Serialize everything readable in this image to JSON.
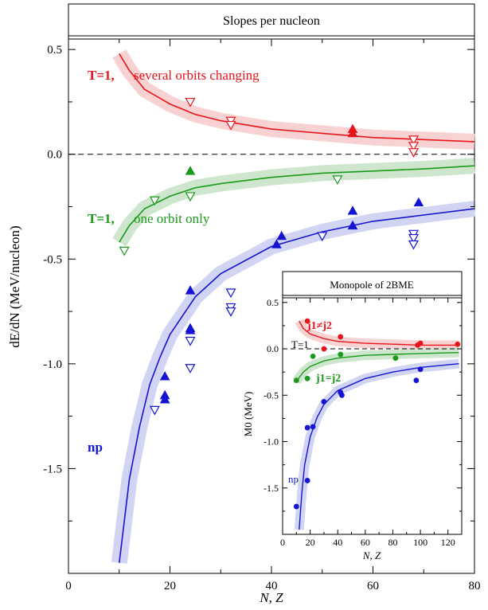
{
  "chart_data": [
    {
      "type": "scatter",
      "title": "Slopes per nucleon",
      "xlabel": "N, Z",
      "ylabel": "dE/dN  (MeV/nucleon)",
      "xlim": [
        0,
        80
      ],
      "ylim": [
        -2.0,
        0.55
      ],
      "xticks": [
        0,
        20,
        40,
        60,
        80
      ],
      "yticks": [
        0.5,
        0.0,
        -0.5,
        -1.0,
        -1.5
      ],
      "ytick_labels": [
        "0.5",
        "0.0",
        "-0.5",
        "-1.0",
        "-1.5"
      ],
      "reference_line": {
        "y": 0.0,
        "style": "dashed"
      },
      "grid": false,
      "series": [
        {
          "label": "T=1,",
          "description": "several orbits changing",
          "color": "#e8141b",
          "band_color": "#f8d2d2",
          "fit": {
            "x_start": 10,
            "x_end": 80,
            "points": [
              [
                10,
                0.48
              ],
              [
                12,
                0.4
              ],
              [
                15,
                0.31
              ],
              [
                20,
                0.24
              ],
              [
                25,
                0.19
              ],
              [
                30,
                0.16
              ],
              [
                40,
                0.12
              ],
              [
                50,
                0.1
              ],
              [
                60,
                0.08
              ],
              [
                70,
                0.07
              ],
              [
                80,
                0.06
              ]
            ]
          },
          "filled_points": [
            [
              56,
              0.12
            ],
            [
              56,
              0.1
            ]
          ],
          "open_points": [
            [
              24,
              0.25
            ],
            [
              32,
              0.16
            ],
            [
              32,
              0.14
            ],
            [
              68,
              0.07
            ],
            [
              68,
              0.04
            ],
            [
              68,
              0.01
            ]
          ]
        },
        {
          "label": "T=1,",
          "description": "one orbit only",
          "color": "#1a9a1a",
          "band_color": "#cde6cd",
          "fit": {
            "x_start": 10,
            "x_end": 80,
            "points": [
              [
                10,
                -0.42
              ],
              [
                12,
                -0.34
              ],
              [
                15,
                -0.26
              ],
              [
                20,
                -0.2
              ],
              [
                25,
                -0.16
              ],
              [
                30,
                -0.14
              ],
              [
                40,
                -0.11
              ],
              [
                50,
                -0.09
              ],
              [
                60,
                -0.08
              ],
              [
                70,
                -0.07
              ],
              [
                80,
                -0.055
              ]
            ]
          },
          "filled_points": [
            [
              24,
              -0.08
            ]
          ],
          "open_points": [
            [
              11,
              -0.46
            ],
            [
              17,
              -0.22
            ],
            [
              24,
              -0.2
            ],
            [
              53,
              -0.12
            ]
          ]
        },
        {
          "label": "np",
          "description": "",
          "color": "#1414d2",
          "band_color": "#d2d4f4",
          "fit": {
            "x_start": 10,
            "x_end": 80,
            "points": [
              [
                10,
                -1.95
              ],
              [
                12,
                -1.55
              ],
              [
                14,
                -1.3
              ],
              [
                16,
                -1.1
              ],
              [
                18,
                -0.97
              ],
              [
                20,
                -0.86
              ],
              [
                25,
                -0.68
              ],
              [
                30,
                -0.57
              ],
              [
                40,
                -0.44
              ],
              [
                50,
                -0.37
              ],
              [
                60,
                -0.32
              ],
              [
                70,
                -0.29
              ],
              [
                80,
                -0.26
              ]
            ]
          },
          "filled_points": [
            [
              19,
              -1.06
            ],
            [
              19,
              -1.15
            ],
            [
              19,
              -1.17
            ],
            [
              24,
              -0.65
            ],
            [
              24,
              -0.83
            ],
            [
              24,
              -0.84
            ],
            [
              41,
              -0.43
            ],
            [
              42,
              -0.39
            ],
            [
              56,
              -0.27
            ],
            [
              56,
              -0.34
            ],
            [
              69,
              -0.23
            ]
          ],
          "open_points": [
            [
              17,
              -1.22
            ],
            [
              24,
              -0.89
            ],
            [
              24,
              -1.02
            ],
            [
              32,
              -0.66
            ],
            [
              32,
              -0.73
            ],
            [
              32,
              -0.75
            ],
            [
              50,
              -0.39
            ],
            [
              68,
              -0.38
            ],
            [
              68,
              -0.4
            ],
            [
              68,
              -0.43
            ]
          ]
        }
      ]
    },
    {
      "type": "scatter",
      "title": "Monopole of 2BME",
      "xlabel": "N, Z",
      "ylabel": "M0 (MeV)",
      "xlim": [
        0,
        130
      ],
      "ylim": [
        -2.0,
        0.55
      ],
      "xticks": [
        0,
        20,
        40,
        60,
        80,
        100,
        120
      ],
      "yticks": [
        0.5,
        0.0,
        -0.5,
        -1.0,
        -1.5
      ],
      "ytick_labels": [
        "0.5",
        "0.0",
        "-0.5",
        "-1.0",
        "-1.5"
      ],
      "reference_line": {
        "y": 0.0,
        "style": "dashed",
        "label": "T=1"
      },
      "series": [
        {
          "label": "j1≠j2",
          "color": "#e8141b",
          "band_color": "#f8d2d2",
          "fit": {
            "points": [
              [
                12,
                0.3
              ],
              [
                15,
                0.22
              ],
              [
                20,
                0.16
              ],
              [
                30,
                0.11
              ],
              [
                40,
                0.08
              ],
              [
                60,
                0.06
              ],
              [
                80,
                0.05
              ],
              [
                100,
                0.04
              ],
              [
                128,
                0.04
              ]
            ]
          },
          "points": [
            [
              18,
              0.3
            ],
            [
              30,
              0.0
            ],
            [
              42,
              0.13
            ],
            [
              98,
              0.04
            ],
            [
              100,
              0.06
            ],
            [
              127,
              0.05
            ]
          ]
        },
        {
          "label": "j1=j2",
          "color": "#1a9a1a",
          "band_color": "#cde6cd",
          "fit": {
            "points": [
              [
                10,
                -0.35
              ],
              [
                15,
                -0.25
              ],
              [
                20,
                -0.19
              ],
              [
                30,
                -0.13
              ],
              [
                40,
                -0.1
              ],
              [
                60,
                -0.07
              ],
              [
                80,
                -0.06
              ],
              [
                100,
                -0.05
              ],
              [
                128,
                -0.04
              ]
            ]
          },
          "points": [
            [
              10,
              -0.34
            ],
            [
              18,
              -0.32
            ],
            [
              22,
              -0.08
            ],
            [
              42,
              -0.06
            ],
            [
              82,
              -0.1
            ]
          ]
        },
        {
          "label": "np",
          "color": "#1414d2",
          "band_color": "#d2d4f4",
          "fit": {
            "points": [
              [
                12,
                -1.95
              ],
              [
                14,
                -1.55
              ],
              [
                16,
                -1.25
              ],
              [
                20,
                -0.95
              ],
              [
                25,
                -0.74
              ],
              [
                30,
                -0.6
              ],
              [
                40,
                -0.45
              ],
              [
                60,
                -0.32
              ],
              [
                80,
                -0.25
              ],
              [
                100,
                -0.2
              ],
              [
                128,
                -0.16
              ]
            ]
          },
          "points": [
            [
              10,
              -1.7
            ],
            [
              18,
              -1.42
            ],
            [
              18,
              -0.85
            ],
            [
              22,
              -0.84
            ],
            [
              30,
              -0.57
            ],
            [
              42,
              -0.47
            ],
            [
              43,
              -0.5
            ],
            [
              97,
              -0.34
            ],
            [
              100,
              -0.22
            ]
          ]
        }
      ]
    }
  ]
}
